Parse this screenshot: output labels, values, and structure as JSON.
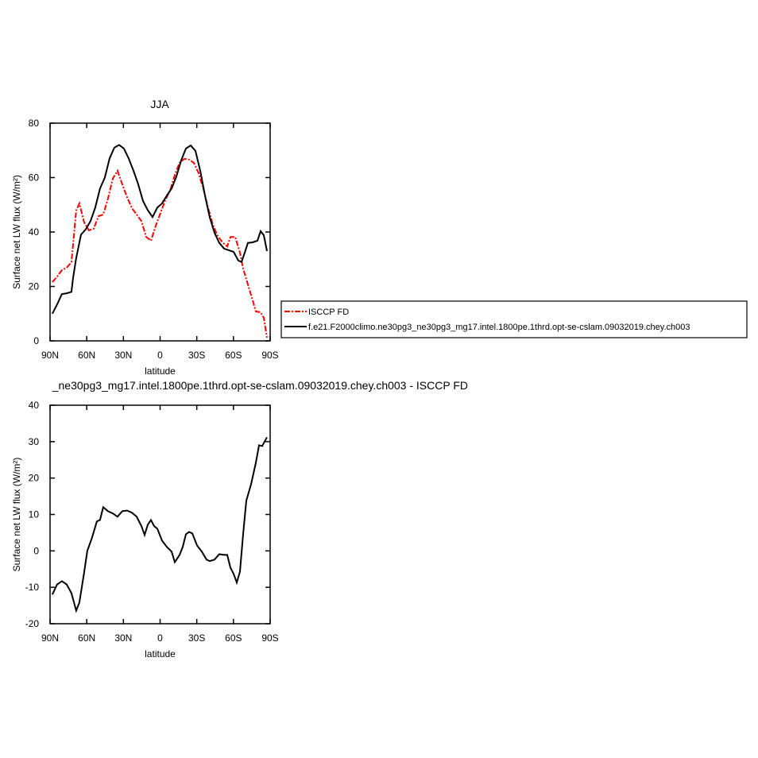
{
  "chart_data": [
    {
      "type": "line",
      "title": "JJA",
      "x_label": "latitude",
      "y_label": "Surface net LW flux (W/m²)",
      "xlim": [
        90,
        -90
      ],
      "ylim": [
        0,
        80
      ],
      "xticks": [
        {
          "value": 90,
          "label": "90N"
        },
        {
          "value": 60,
          "label": "60N"
        },
        {
          "value": 30,
          "label": "30N"
        },
        0,
        {
          "value": -30,
          "label": "30S"
        },
        {
          "value": -60,
          "label": "60S"
        },
        {
          "value": -90,
          "label": "90S"
        }
      ],
      "yticks": [
        0,
        20,
        40,
        60,
        80
      ],
      "series": [
        {
          "name": "ISCCP FD",
          "color": "#ff0000",
          "line_style": "dashed",
          "x": [
            88.1,
            84.2,
            80.3,
            76.4,
            72.5,
            68.6,
            66.0,
            62.1,
            58.2,
            54.3,
            50.4,
            46.5,
            42.6,
            38.7,
            34.8,
            30.9,
            27.0,
            23.1,
            19.2,
            15.3,
            11.4,
            7.5,
            3.6,
            -0.3,
            -4.2,
            -8.1,
            -12.0,
            -15.9,
            -19.8,
            -23.7,
            -27.6,
            -31.5,
            -35.4,
            -39.3,
            -43.2,
            -47.1,
            -51.0,
            -54.9,
            -57.5,
            -61.4,
            -65.3,
            -67.9,
            -71.8,
            -75.7,
            -78.3,
            -82.2,
            -84.8,
            -87.4
          ],
          "values": [
            21.6,
            23.6,
            26.0,
            26.9,
            28.9,
            47.9,
            50.5,
            43.5,
            40.6,
            41.2,
            45.8,
            46.4,
            52.3,
            59.6,
            62.5,
            57.5,
            52.8,
            48.8,
            46.4,
            44.0,
            38.2,
            36.8,
            42.3,
            47.0,
            51.7,
            55.2,
            61.0,
            65.4,
            66.9,
            66.6,
            65.4,
            61.6,
            55.8,
            48.8,
            42.6,
            38.5,
            36.2,
            34.7,
            38.2,
            38.2,
            32.4,
            26.6,
            20.7,
            14.9,
            10.8,
            10.5,
            8.5,
            1.2
          ]
        },
        {
          "name": "f.e21.F2000climo.ne30pg3_ne30pg3_mg17.intel.1800pe.1thrd.opt-se-cslam.09032019.chey.ch003",
          "color": "#000000",
          "line_style": "solid",
          "x": [
            88.1,
            84.2,
            80.3,
            76.4,
            72.5,
            71.2,
            68.6,
            64.7,
            60.8,
            56.9,
            53.0,
            49.1,
            45.2,
            41.3,
            37.4,
            33.5,
            29.6,
            25.7,
            21.8,
            17.9,
            14.0,
            10.1,
            6.2,
            2.3,
            -1.6,
            -5.5,
            -9.4,
            -13.3,
            -17.2,
            -21.1,
            -25.0,
            -28.9,
            -32.8,
            -36.7,
            -40.6,
            -44.5,
            -48.4,
            -52.3,
            -56.2,
            -60.1,
            -64.0,
            -66.6,
            -69.2,
            -71.8,
            -75.7,
            -79.6,
            -82.2,
            -84.8,
            -87.4
          ],
          "values": [
            10.0,
            13.4,
            17.2,
            17.5,
            18.0,
            23.0,
            30.4,
            39.0,
            41.0,
            44.0,
            49.0,
            56.0,
            60.0,
            67.0,
            71.0,
            72.0,
            70.7,
            67.0,
            62.5,
            57.5,
            51.4,
            48.0,
            45.5,
            49.0,
            50.5,
            53.4,
            56.0,
            60.4,
            66.3,
            70.7,
            71.8,
            69.8,
            62.5,
            53.4,
            45.3,
            39.7,
            36.0,
            33.9,
            33.3,
            32.7,
            29.5,
            29.0,
            32.4,
            36.0,
            36.2,
            36.8,
            40.3,
            38.8,
            33.0
          ]
        }
      ]
    },
    {
      "type": "line",
      "title": "_ne30pg3_mg17.intel.1800pe.1thrd.opt-se-cslam.09032019.chey.ch003 - ISCCP FD",
      "x_label": "latitude",
      "y_label": "Surface net LW flux (W/m²)",
      "xlim": [
        90,
        -90
      ],
      "ylim": [
        -20,
        40
      ],
      "xticks": [
        {
          "value": 90,
          "label": "90N"
        },
        {
          "value": 60,
          "label": "60N"
        },
        {
          "value": 30,
          "label": "30N"
        },
        0,
        {
          "value": -30,
          "label": "30S"
        },
        {
          "value": -60,
          "label": "60S"
        },
        {
          "value": -90,
          "label": "90S"
        }
      ],
      "yticks": [
        -20,
        -10,
        0,
        10,
        20,
        30,
        40
      ],
      "series": [
        {
          "color": "#000000",
          "line_style": "solid",
          "x": [
            88.1,
            84.2,
            80.3,
            76.4,
            72.5,
            68.6,
            66.0,
            62.1,
            59.5,
            55.6,
            51.7,
            49.1,
            46.5,
            42.6,
            38.7,
            34.8,
            30.9,
            27.0,
            23.1,
            19.2,
            15.3,
            12.7,
            10.1,
            7.5,
            4.9,
            2.3,
            -1.6,
            -5.5,
            -9.4,
            -12.0,
            -15.9,
            -18.5,
            -21.1,
            -23.7,
            -26.3,
            -30.2,
            -34.1,
            -38.0,
            -40.6,
            -44.5,
            -48.4,
            -52.3,
            -54.9,
            -57.5,
            -60.1,
            -62.7,
            -65.3,
            -67.9,
            -70.5,
            -74.4,
            -78.3,
            -80.9,
            -83.5,
            -87.4
          ],
          "values": [
            -12.0,
            -9.2,
            -8.3,
            -9.2,
            -11.6,
            -16.4,
            -14.2,
            -5.9,
            0.0,
            3.7,
            8.1,
            8.5,
            12.0,
            10.9,
            10.3,
            9.4,
            10.9,
            11.1,
            10.5,
            9.4,
            6.8,
            4.4,
            7.2,
            8.5,
            6.8,
            6.1,
            2.8,
            1.1,
            -0.2,
            -3.1,
            -1.1,
            1.1,
            4.6,
            5.2,
            4.8,
            1.5,
            -0.2,
            -2.4,
            -2.8,
            -2.4,
            -0.9,
            -1.1,
            -1.1,
            -4.6,
            -6.3,
            -8.7,
            -5.7,
            4.6,
            13.8,
            18.3,
            24.2,
            29.0,
            28.8,
            31.2
          ]
        }
      ]
    }
  ]
}
